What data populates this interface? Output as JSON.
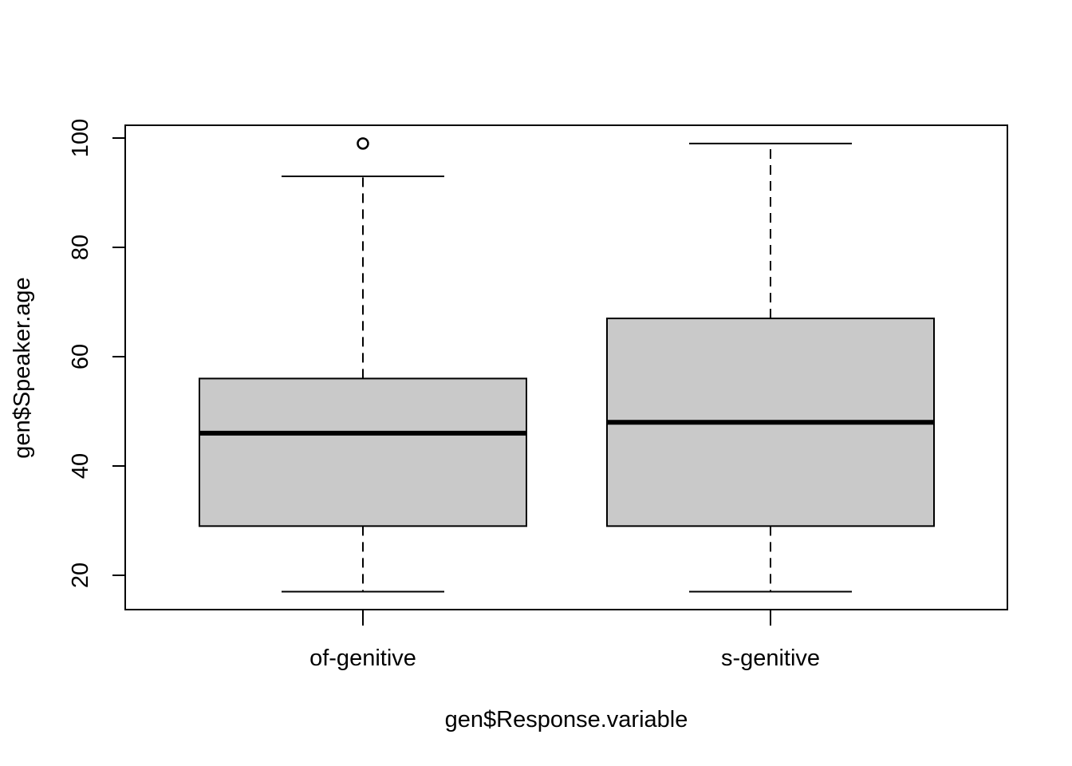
{
  "chart_data": {
    "type": "box",
    "title": "",
    "xlabel": "gen$Response.variable",
    "ylabel": "gen$Speaker.age",
    "ylim": [
      14,
      102
    ],
    "yticks": [
      20,
      40,
      60,
      80,
      100
    ],
    "categories": [
      "of-genitive",
      "s-genitive"
    ],
    "boxes": [
      {
        "category": "of-genitive",
        "whisker_low": 17,
        "q1": 29,
        "median": 46,
        "q3": 56,
        "whisker_high": 93,
        "outliers": [
          99
        ]
      },
      {
        "category": "s-genitive",
        "whisker_low": 17,
        "q1": 29,
        "median": 48,
        "q3": 67,
        "whisker_high": 99,
        "outliers": []
      }
    ],
    "box_fill": "#c9c9c9",
    "grid": false,
    "legend": "none"
  }
}
